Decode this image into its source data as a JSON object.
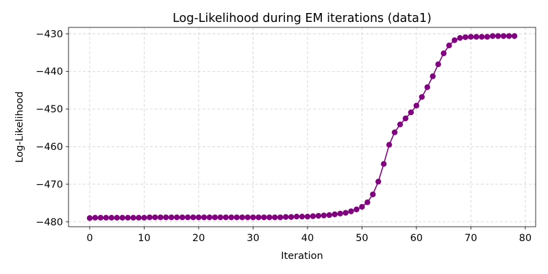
{
  "chart_data": {
    "type": "line",
    "title": "Log-Likelihood during EM iterations (data1)",
    "xlabel": "Iteration",
    "ylabel": "Log-Likelihood",
    "xlim": [
      -3.9,
      81.9
    ],
    "ylim": [
      -481.3,
      -428.3
    ],
    "xticks": [
      0,
      10,
      20,
      30,
      40,
      50,
      60,
      70,
      80
    ],
    "yticks": [
      -480,
      -470,
      -460,
      -450,
      -440,
      -430
    ],
    "xtick_labels": [
      "0",
      "10",
      "20",
      "30",
      "40",
      "50",
      "60",
      "70",
      "80"
    ],
    "ytick_labels": [
      "−480",
      "−470",
      "−460",
      "−450",
      "−440",
      "−430"
    ],
    "grid": true,
    "line_color": "#800080",
    "marker": "circle",
    "series": [
      {
        "x": [
          0,
          1,
          2,
          3,
          4,
          5,
          6,
          7,
          8,
          9,
          10,
          11,
          12,
          13,
          14,
          15,
          16,
          17,
          18,
          19,
          20,
          21,
          22,
          23,
          24,
          25,
          26,
          27,
          28,
          29,
          30,
          31,
          32,
          33,
          34,
          35,
          36,
          37,
          38,
          39,
          40,
          41,
          42,
          43,
          44,
          45,
          46,
          47,
          48,
          49,
          50,
          51,
          52,
          53,
          54,
          55,
          56,
          57,
          58,
          59,
          60,
          61,
          62,
          63,
          64,
          65,
          66,
          67,
          68,
          69,
          70,
          71,
          72,
          73,
          74,
          75,
          76,
          77,
          78
        ],
        "y": [
          -479.0,
          -478.9,
          -478.9,
          -478.9,
          -478.9,
          -478.9,
          -478.9,
          -478.9,
          -478.9,
          -478.9,
          -478.9,
          -478.8,
          -478.8,
          -478.8,
          -478.8,
          -478.8,
          -478.8,
          -478.8,
          -478.8,
          -478.8,
          -478.8,
          -478.8,
          -478.8,
          -478.8,
          -478.8,
          -478.8,
          -478.8,
          -478.8,
          -478.8,
          -478.8,
          -478.8,
          -478.8,
          -478.8,
          -478.8,
          -478.8,
          -478.8,
          -478.7,
          -478.7,
          -478.6,
          -478.6,
          -478.6,
          -478.5,
          -478.4,
          -478.3,
          -478.2,
          -478.0,
          -477.8,
          -477.6,
          -477.2,
          -476.7,
          -476.0,
          -474.8,
          -472.7,
          -469.3,
          -464.6,
          -459.5,
          -456.2,
          -454.1,
          -452.5,
          -450.9,
          -449.1,
          -446.8,
          -444.2,
          -441.3,
          -438.1,
          -435.2,
          -433.1,
          -431.7,
          -431.1,
          -430.9,
          -430.8,
          -430.8,
          -430.8,
          -430.8,
          -430.6,
          -430.6,
          -430.6,
          -430.6,
          -430.6
        ]
      }
    ]
  }
}
